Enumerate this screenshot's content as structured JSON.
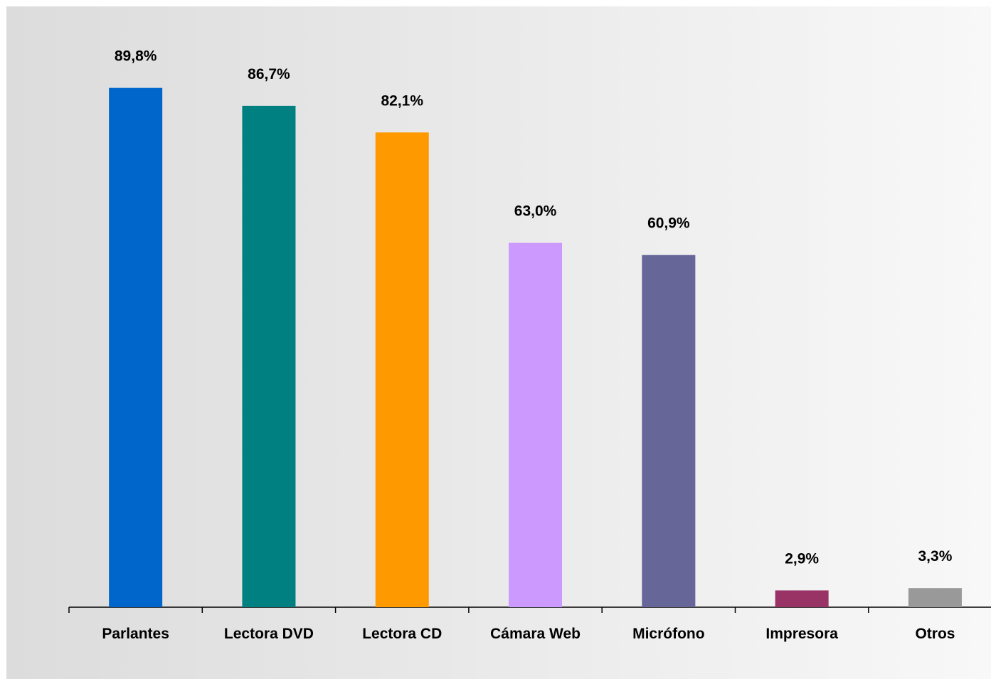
{
  "chart_data": {
    "type": "bar",
    "categories": [
      "Parlantes",
      "Lectora DVD",
      "Lectora CD",
      "Cámara Web",
      "Micrófono",
      "Impresora",
      "Otros"
    ],
    "values": [
      89.8,
      86.7,
      82.1,
      63.0,
      60.9,
      2.9,
      3.3
    ],
    "value_labels": [
      "89,8%",
      "86,7%",
      "82,1%",
      "63,0%",
      "60,9%",
      "2,9%",
      "3,3%"
    ],
    "colors": [
      "#0066CC",
      "#008080",
      "#FF9900",
      "#CC99FF",
      "#666699",
      "#993366",
      "#999999"
    ],
    "ylim": [
      0,
      100
    ],
    "grid": false,
    "legend": "none",
    "background": "gradient light-gray to white"
  }
}
